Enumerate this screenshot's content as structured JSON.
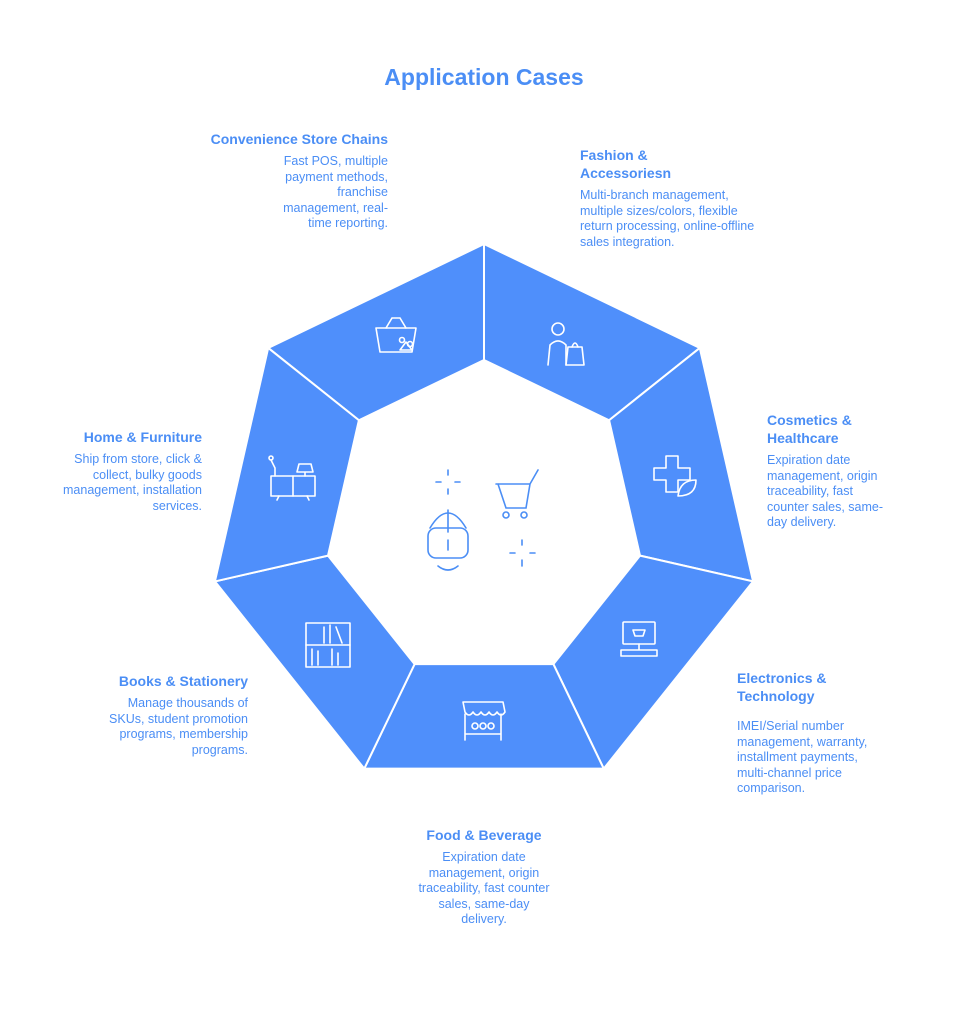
{
  "title": "Application Cases",
  "colors": {
    "segment": "#4f8ffb",
    "text": "#4b8ef5",
    "icon_stroke": "#ffffff"
  },
  "segments": [
    {
      "title": "Convenience Store Chains",
      "desc": "Fast POS, multiple payment methods, franchise management, real-time reporting.",
      "icon": "shopping-basket-icon"
    },
    {
      "title": "Fashion & Accessoriesn",
      "desc": "Multi-branch management, multiple sizes/colors, flexible return processing, online-offline sales integration.",
      "icon": "person-shopping-bag-icon"
    },
    {
      "title": "Cosmetics & Healthcare",
      "desc": "Expiration date management, origin traceability, fast counter sales, same-day delivery.",
      "icon": "medical-cross-leaf-icon"
    },
    {
      "title": "Electronics & Technology",
      "desc": "IMEI/Serial number management, warranty, installment payments, multi-channel price comparison.",
      "icon": "computer-cart-icon"
    },
    {
      "title": "Food & Beverage",
      "desc": "Expiration date management, origin traceability, fast counter sales, same-day delivery.",
      "icon": "market-stall-icon"
    },
    {
      "title": "Books & Stationery",
      "desc": "Manage thousands of SKUs, student promotion programs, membership programs.",
      "icon": "bookshelf-icon"
    },
    {
      "title": "Home & Furniture",
      "desc": "Ship from store, click & collect, bulky goods management, installation services.",
      "icon": "furniture-lamp-icon"
    }
  ],
  "center_icon": "vr-headset-shopping-cart-icon"
}
